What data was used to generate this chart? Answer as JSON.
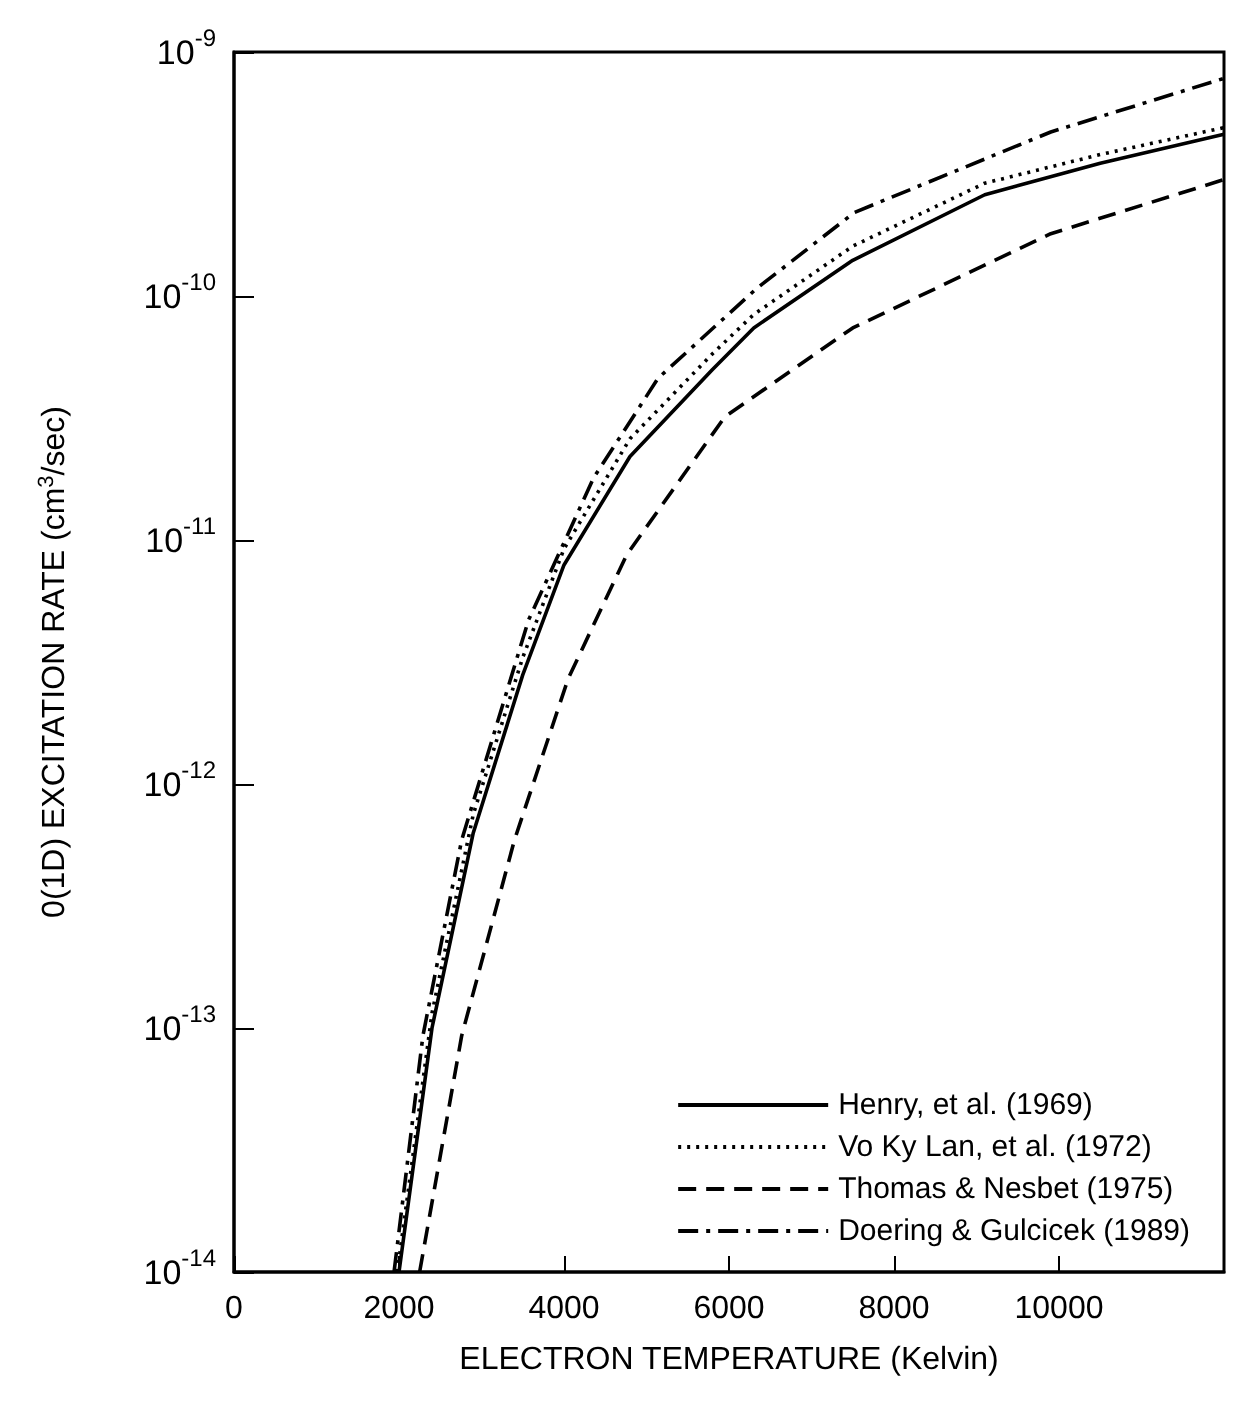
{
  "chart_data": {
    "type": "line",
    "xlabel": "ELECTRON TEMPERATURE (Kelvin)",
    "ylabel": "0(1D) EXCITATION RATE (cm$^{3}$/sec)",
    "log": "y",
    "grid": false,
    "legend": "bottom right",
    "marker": "none",
    "xlim": [
      0,
      12000
    ],
    "xticks": [
      0,
      2000,
      4000,
      6000,
      8000,
      10000
    ],
    "ylim": [
      1e-14,
      1e-09
    ],
    "yticks": [
      {
        "value": 1e-14,
        "label": "10$^{-14}$"
      },
      {
        "value": 1e-13,
        "label": "10$^{-13}$"
      },
      {
        "value": 1e-12,
        "label": "10$^{-12}$"
      },
      {
        "value": 1e-11,
        "label": "10$^{-11}$"
      },
      {
        "value": 1e-10,
        "label": "10$^{-10}$"
      },
      {
        "value": 1e-09,
        "label": "10$^{-9}$"
      }
    ],
    "series": [
      {
        "name": "Henry, et al. (1969)",
        "color": "#000000",
        "line_style": "solid",
        "x": [
          2000,
          2400,
          2900,
          3500,
          4000,
          4800,
          5800,
          6300,
          7500,
          9100,
          10500,
          12000
        ],
        "values": [
          1e-14,
          1e-13,
          6.3e-13,
          2.8e-12,
          7.9e-12,
          2.2e-11,
          5e-11,
          7.4e-11,
          1.4e-10,
          2.6e-10,
          3.5e-10,
          4.6e-10
        ]
      },
      {
        "name": "Vo Ky Lan, et al. (1972)",
        "color": "#000000",
        "line_style": "dotted",
        "x": [
          1980,
          2400,
          2900,
          3500,
          4000,
          4800,
          5800,
          6300,
          7500,
          9100,
          10500,
          12000
        ],
        "values": [
          1e-14,
          1.15e-13,
          7.5e-13,
          3.3e-12,
          9.2e-12,
          2.6e-11,
          5.8e-11,
          8.4e-11,
          1.6e-10,
          2.9e-10,
          3.8e-10,
          4.9e-10
        ]
      },
      {
        "name": "Thomas & Nesbet (1975)",
        "color": "#000000",
        "line_style": "dashed",
        "x": [
          2250,
          2760,
          3400,
          4050,
          4760,
          5950,
          7500,
          9900,
          12000
        ],
        "values": [
          1e-14,
          9.3e-14,
          5.9e-13,
          2.7e-12,
          8.7e-12,
          3.2e-11,
          7.4e-11,
          1.8e-10,
          3e-10
        ]
      },
      {
        "name": "Doering & Gulcicek (1989)",
        "color": "#000000",
        "line_style": "dashdot",
        "x": [
          1940,
          2290,
          2760,
          3570,
          4360,
          5140,
          6330,
          7520,
          9900,
          12000
        ],
        "values": [
          1e-14,
          9.3e-14,
          5.9e-13,
          4.7e-12,
          1.8e-11,
          4.6e-11,
          1.07e-10,
          2.2e-10,
          4.7e-10,
          7.8e-10
        ]
      }
    ]
  }
}
